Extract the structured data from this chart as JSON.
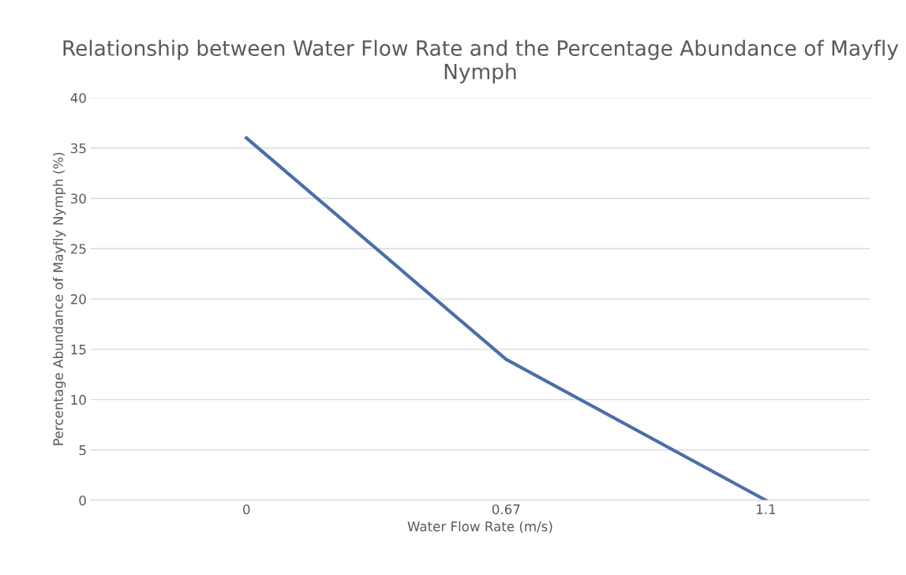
{
  "chart_data": {
    "type": "line",
    "title": "Relationship between Water Flow Rate and the Percentage Abundance of Mayfly Nymph",
    "xlabel": "Water Flow Rate (m/s)",
    "ylabel": "Percentage Abundance of Mayfly Nymph (%)",
    "categories": [
      "0",
      "0.67",
      "1.1"
    ],
    "series": [
      {
        "color": "#4a6fa8",
        "values": [
          36,
          14,
          0
        ]
      }
    ],
    "ylim": [
      0,
      40
    ],
    "yticks": [
      0,
      5,
      10,
      15,
      20,
      25,
      30,
      35,
      40
    ],
    "grid": "y",
    "marker": "none",
    "line_style": "solid"
  }
}
